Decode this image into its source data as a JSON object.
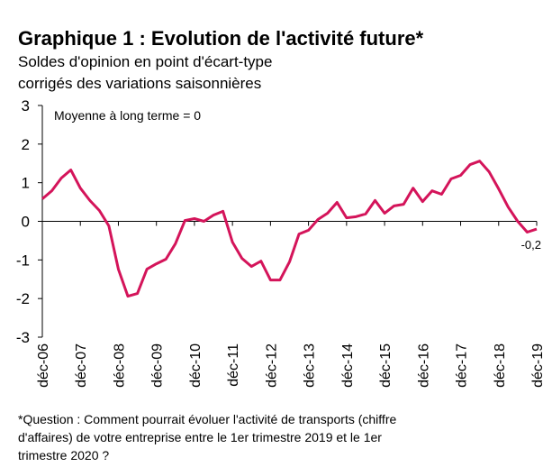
{
  "chart_data": {
    "type": "line",
    "title": "Graphique 1 : Evolution de l'activité future*",
    "subtitle": [
      "Soldes d'opinion en point d'écart-type",
      "corrigés des variations saisonnières"
    ],
    "annotation": "Moyenne à long terme = 0",
    "footnote": [
      "*Question : Comment pourrait évoluer l'activité de transports (chiffre",
      "d'affaires) de votre entreprise entre le 1er trimestre 2019 et le 1er",
      "trimestre 2020 ?"
    ],
    "categories": [
      "déc-06",
      null,
      null,
      null,
      "déc-07",
      null,
      null,
      null,
      "déc-08",
      null,
      null,
      null,
      "déc-09",
      null,
      null,
      null,
      "déc-10",
      null,
      null,
      null,
      "déc-11",
      null,
      null,
      null,
      "déc-12",
      null,
      null,
      null,
      "déc-13",
      null,
      null,
      null,
      "déc-14",
      null,
      null,
      null,
      "déc-15",
      null,
      null,
      null,
      "déc-16",
      null,
      null,
      null,
      "déc-17",
      null,
      null,
      null,
      "déc-18",
      null,
      null,
      null,
      "déc-19"
    ],
    "series": [
      {
        "name": null,
        "color": "#d4145a",
        "values": [
          0.58,
          0.79,
          1.12,
          1.33,
          0.86,
          0.54,
          0.28,
          -0.12,
          -1.24,
          -1.94,
          -1.87,
          -1.24,
          -1.1,
          -0.98,
          -0.58,
          0.02,
          0.07,
          0.0,
          0.16,
          0.26,
          -0.54,
          -0.96,
          -1.17,
          -1.03,
          -1.52,
          -1.52,
          -1.05,
          -0.33,
          -0.23,
          0.05,
          0.21,
          0.49,
          0.09,
          0.12,
          0.19,
          0.54,
          0.21,
          0.4,
          0.44,
          0.86,
          0.51,
          0.79,
          0.7,
          1.1,
          1.19,
          1.47,
          1.56,
          1.28,
          0.84,
          0.37,
          0.0,
          -0.28,
          -0.2
        ],
        "value_labels": [
          null,
          null,
          null,
          null,
          null,
          null,
          null,
          null,
          null,
          null,
          null,
          null,
          null,
          null,
          null,
          null,
          null,
          null,
          null,
          null,
          null,
          null,
          null,
          null,
          null,
          null,
          null,
          null,
          null,
          null,
          null,
          null,
          null,
          null,
          null,
          null,
          null,
          null,
          null,
          null,
          null,
          null,
          null,
          null,
          null,
          null,
          null,
          null,
          null,
          null,
          null,
          null,
          "-0,2"
        ]
      }
    ],
    "ylim": [
      -3,
      3
    ],
    "yticks": [
      3,
      2,
      1,
      0,
      -1,
      -2,
      -3
    ],
    "grid": false
  }
}
